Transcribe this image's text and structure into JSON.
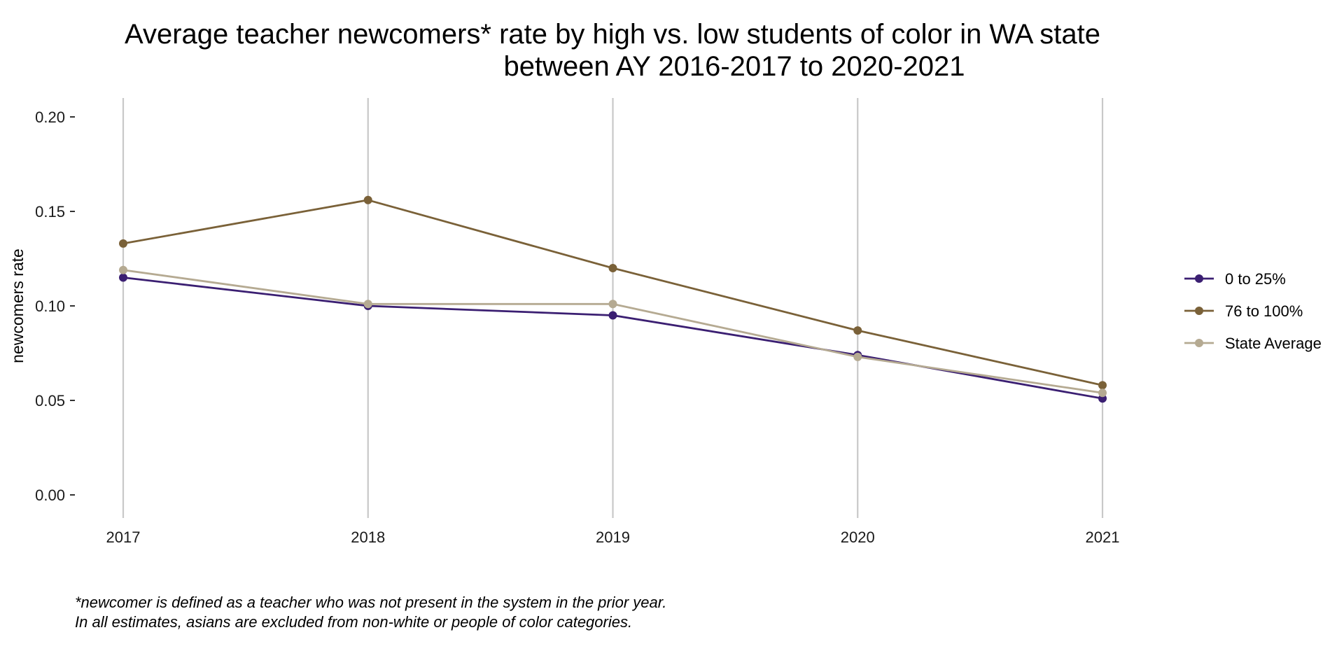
{
  "chart_data": {
    "type": "line",
    "title": [
      "Average teacher newcomers* rate by high vs. low students of color in WA state",
      "between AY 2016-2017 to 2020-2021"
    ],
    "xlabel": "",
    "ylabel": "newcomers rate",
    "x": [
      2017,
      2018,
      2019,
      2020,
      2021
    ],
    "x_tick_labels": [
      "2017",
      "2018",
      "2019",
      "2020",
      "2021"
    ],
    "ylim": [
      0,
      0.2
    ],
    "y_ticks": [
      0,
      0.05,
      0.1,
      0.15,
      0.2
    ],
    "y_tick_labels": [
      "0.00",
      "0.05",
      "0.10",
      "0.15",
      "0.20"
    ],
    "grid": "vertical",
    "legend_position": "right",
    "series": [
      {
        "name": "0 to 25%",
        "color": "#3b1f72",
        "values": [
          0.115,
          0.1,
          0.095,
          0.074,
          0.051
        ]
      },
      {
        "name": "76 to 100%",
        "color": "#7a6138",
        "values": [
          0.133,
          0.156,
          0.12,
          0.087,
          0.058
        ]
      },
      {
        "name": "State Average",
        "color": "#b5aa92",
        "values": [
          0.119,
          0.101,
          0.101,
          0.073,
          0.054
        ]
      }
    ],
    "caption": [
      "*newcomer is defined as a teacher who was not present in the system in the prior year.",
      "In all estimates, asians are excluded from non-white or people of color categories."
    ]
  }
}
